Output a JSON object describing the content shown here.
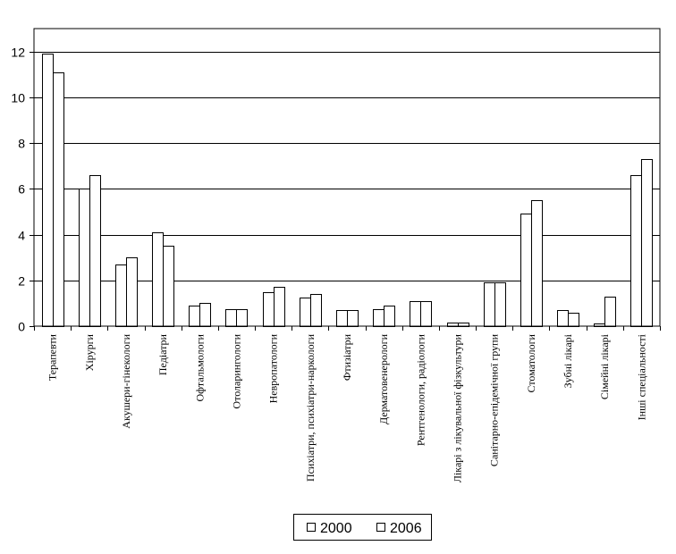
{
  "chart_data": {
    "type": "bar",
    "categories": [
      "Терапевти",
      "Хірурги",
      "Акушери-гінекологи",
      "Педіатри",
      "Офтальмологи",
      "Отоларингологи",
      "Невропатологи",
      "Психіатри, психіатри-наркологи",
      "Фтизіатри",
      "Дерматовенерологи",
      "Рентгенологи, радіологи",
      "Лікарі з лікувальної фізкультури",
      "Санітарно-епідемічної групи",
      "Стоматологи",
      "Зубні лікарі",
      "Сімейні лікарі",
      "Інші спеціальності"
    ],
    "series": [
      {
        "name": "2000",
        "values": [
          11.9,
          6.0,
          2.7,
          4.1,
          0.9,
          0.75,
          1.5,
          1.25,
          0.7,
          0.75,
          1.1,
          0.15,
          1.9,
          4.9,
          0.7,
          0.1,
          6.6
        ]
      },
      {
        "name": "2006",
        "values": [
          11.1,
          6.6,
          3.0,
          3.5,
          1.0,
          0.75,
          1.7,
          1.4,
          0.7,
          0.9,
          1.1,
          0.15,
          1.9,
          5.5,
          0.6,
          1.3,
          7.3
        ]
      }
    ],
    "yticks": [
      "0",
      "2",
      "4",
      "6",
      "8",
      "10",
      "12"
    ],
    "ylim": [
      0,
      13
    ],
    "grid": true,
    "legend": "bottom",
    "title": "",
    "xlabel": "",
    "ylabel": "",
    "colors": {
      "bar_fill": "#ffffff",
      "bar_stroke": "#000000",
      "grid": "#000000"
    }
  }
}
